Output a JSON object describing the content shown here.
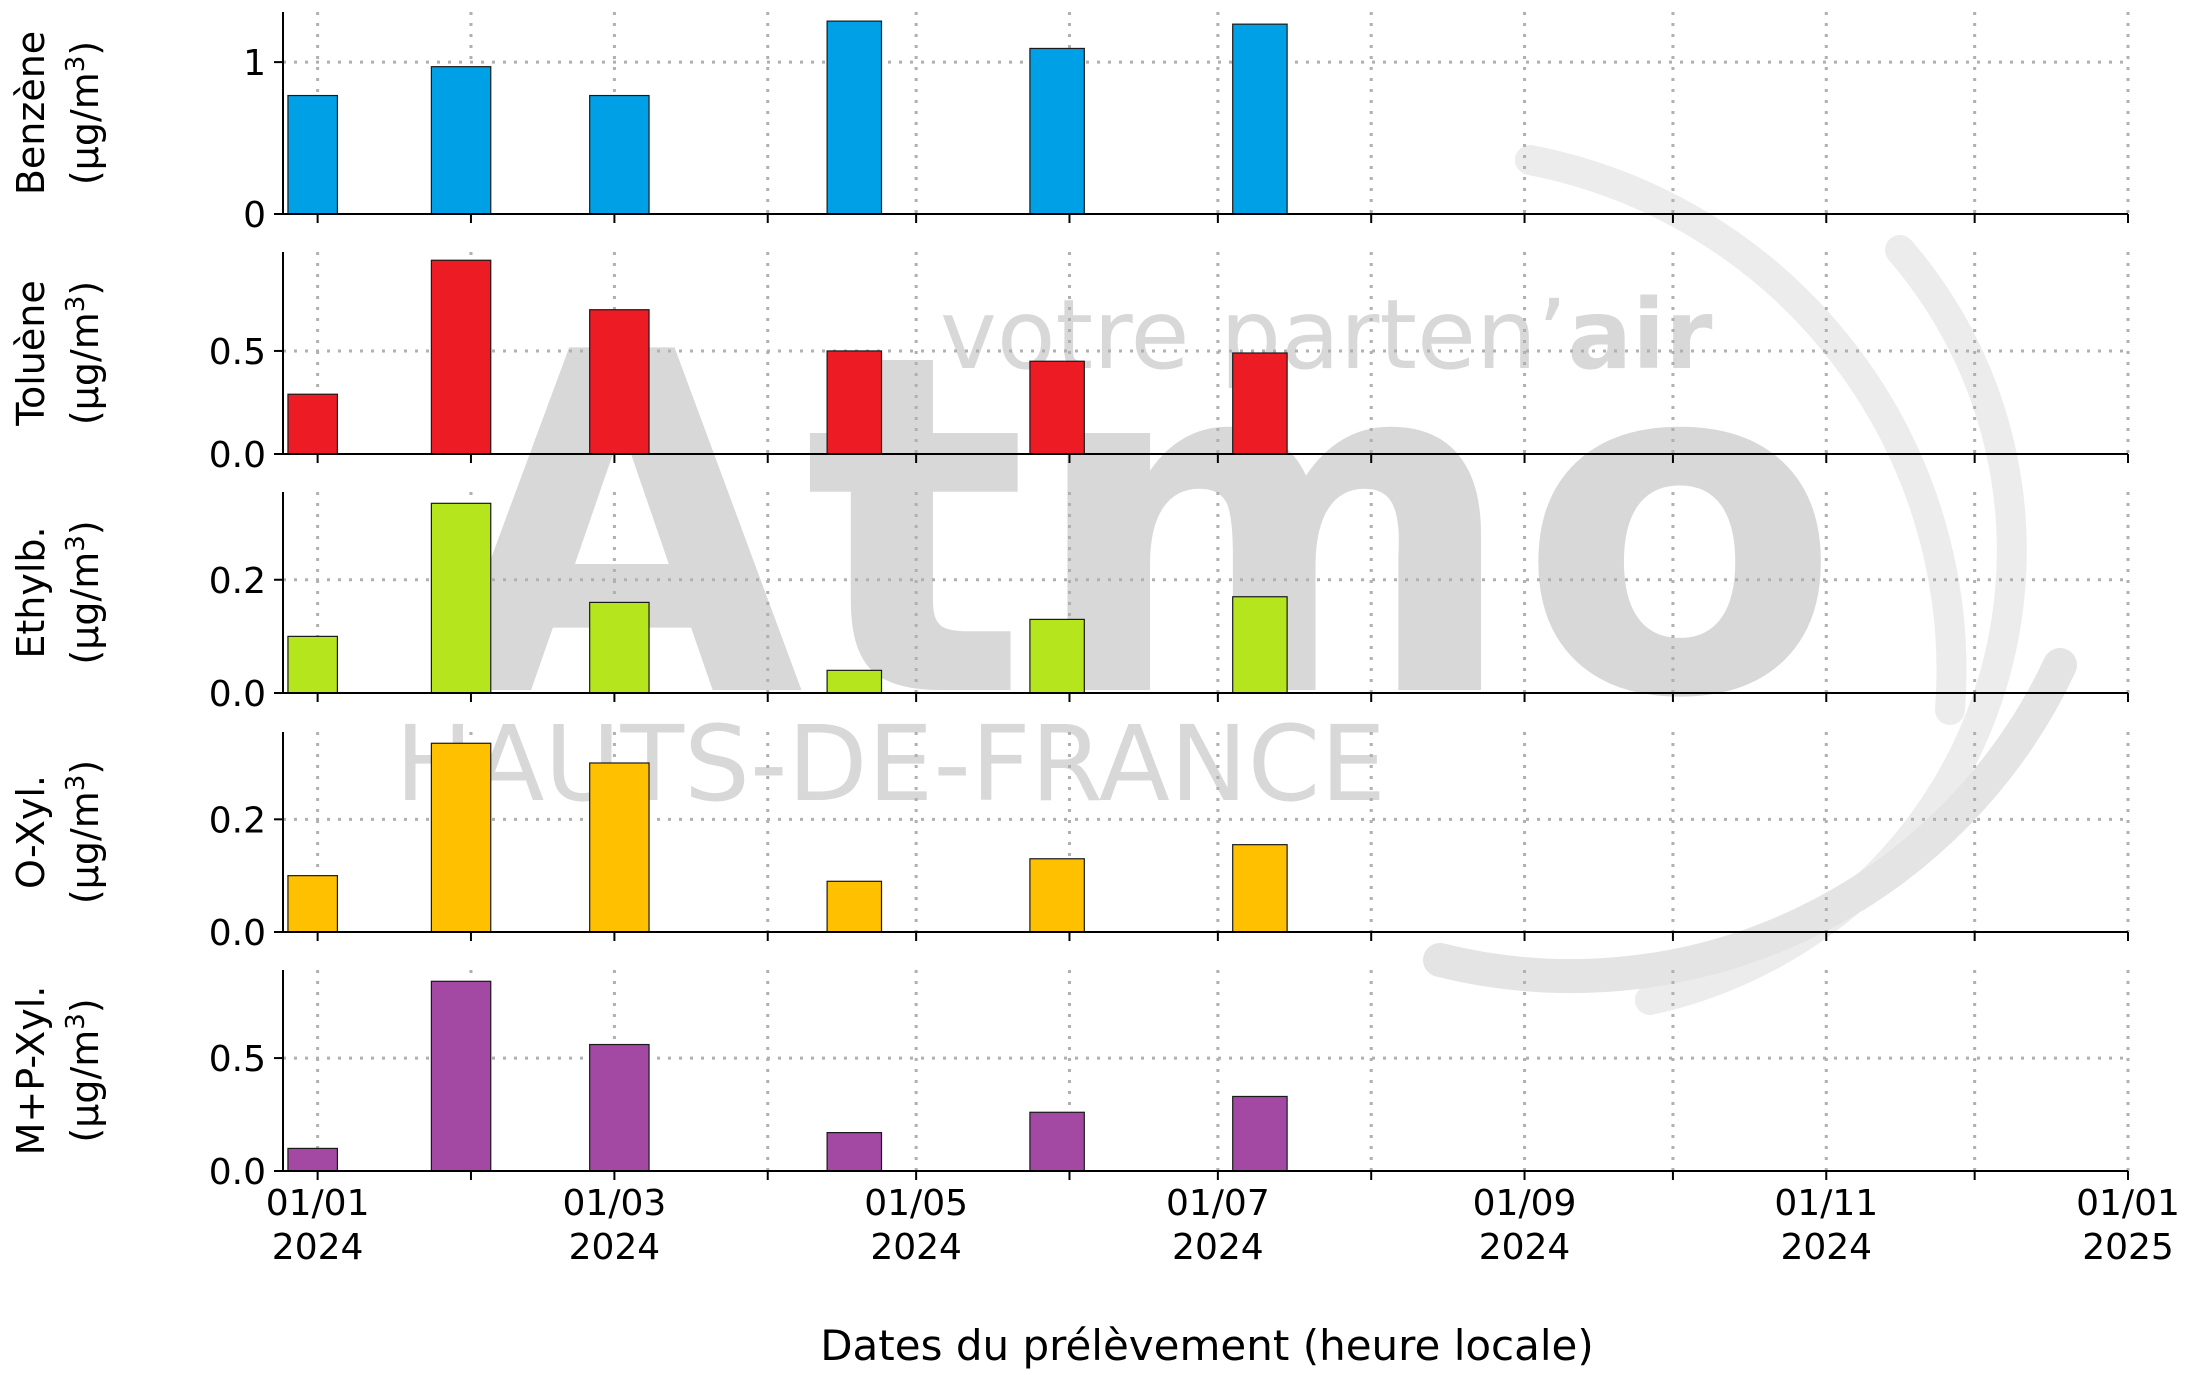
{
  "watermark": {
    "brand": "Atmo",
    "tagline_regular": "votre parten’",
    "tagline_bold": "air",
    "region": "HAUTS-DE-FRANCE"
  },
  "chart_data": {
    "type": "bar",
    "xlabel": "Dates du prélèvement (heure locale)",
    "x_range": [
      "2023-12-25",
      "2025-01-01"
    ],
    "x_tick_dates": [
      "2024-01-01",
      "2024-02-01",
      "2024-03-01",
      "2024-04-01",
      "2024-05-01",
      "2024-06-01",
      "2024-07-01",
      "2024-08-01",
      "2024-09-01",
      "2024-10-01",
      "2024-11-01",
      "2024-12-01",
      "2025-01-01"
    ],
    "x_tick_labels": [
      {
        "date": "2024-01-01",
        "line1": "01/01",
        "line2": "2024"
      },
      {
        "date": "2024-03-01",
        "line1": "01/03",
        "line2": "2024"
      },
      {
        "date": "2024-05-01",
        "line1": "01/05",
        "line2": "2024"
      },
      {
        "date": "2024-07-01",
        "line1": "01/07",
        "line2": "2024"
      },
      {
        "date": "2024-09-01",
        "line1": "01/09",
        "line2": "2024"
      },
      {
        "date": "2024-11-01",
        "line1": "01/11",
        "line2": "2024"
      },
      {
        "date": "2025-01-01",
        "line1": "01/01",
        "line2": "2025"
      }
    ],
    "sample_periods": [
      {
        "start": "2023-12-26",
        "end": "2024-01-05"
      },
      {
        "start": "2024-01-24",
        "end": "2024-02-05"
      },
      {
        "start": "2024-02-25",
        "end": "2024-03-08"
      },
      {
        "start": "2024-04-13",
        "end": "2024-04-24"
      },
      {
        "start": "2024-05-24",
        "end": "2024-06-04"
      },
      {
        "start": "2024-07-04",
        "end": "2024-07-15"
      }
    ],
    "grid": true,
    "legend": "none",
    "panels": [
      {
        "name": "Benzène",
        "unit": "(µg/m³)",
        "unit_prefix": "(µg/m",
        "unit_sup": "3",
        "unit_suffix": ")",
        "color": "#00a0e6",
        "ylim": [
          0,
          1.33
        ],
        "yticks": [
          0,
          1
        ],
        "ytick_labels": [
          "0",
          "1"
        ],
        "grid_y": [
          1
        ],
        "values": [
          0.78,
          0.97,
          0.78,
          1.27,
          1.09,
          1.25
        ]
      },
      {
        "name": "Toluène",
        "unit": "(µg/m³)",
        "unit_prefix": "(µg/m",
        "unit_sup": "3",
        "unit_suffix": ")",
        "color": "#ed1c24",
        "ylim": [
          0,
          0.98
        ],
        "yticks": [
          0,
          0.5
        ],
        "ytick_labels": [
          "0.0",
          "0.5"
        ],
        "grid_y": [
          0.5
        ],
        "values": [
          0.29,
          0.94,
          0.7,
          0.5,
          0.45,
          0.49
        ]
      },
      {
        "name": "Ethylb.",
        "unit": "(µg/m³)",
        "unit_prefix": "(µg/m",
        "unit_sup": "3",
        "unit_suffix": ")",
        "color": "#b5e61d",
        "ylim": [
          0,
          0.355
        ],
        "yticks": [
          0,
          0.2
        ],
        "ytick_labels": [
          "0.0",
          "0.2"
        ],
        "grid_y": [
          0.2
        ],
        "values": [
          0.1,
          0.335,
          0.16,
          0.04,
          0.13,
          0.17
        ]
      },
      {
        "name": "O-Xyl.",
        "unit": "(µg/m³)",
        "unit_prefix": "(µg/m",
        "unit_sup": "3",
        "unit_suffix": ")",
        "color": "#ffc000",
        "ylim": [
          0,
          0.355
        ],
        "yticks": [
          0,
          0.2
        ],
        "ytick_labels": [
          "0.0",
          "0.2"
        ],
        "grid_y": [
          0.2
        ],
        "values": [
          0.1,
          0.335,
          0.3,
          0.09,
          0.13,
          0.155
        ]
      },
      {
        "name": "M+P-Xyl.",
        "unit": "(µg/m³)",
        "unit_prefix": "(µg/m",
        "unit_sup": "3",
        "unit_suffix": ")",
        "color": "#a349a4",
        "ylim": [
          0,
          0.89
        ],
        "yticks": [
          0,
          0.5
        ],
        "ytick_labels": [
          "0.0",
          "0.5"
        ],
        "grid_y": [
          0.5
        ],
        "values": [
          0.1,
          0.84,
          0.56,
          0.17,
          0.26,
          0.33
        ]
      }
    ]
  }
}
